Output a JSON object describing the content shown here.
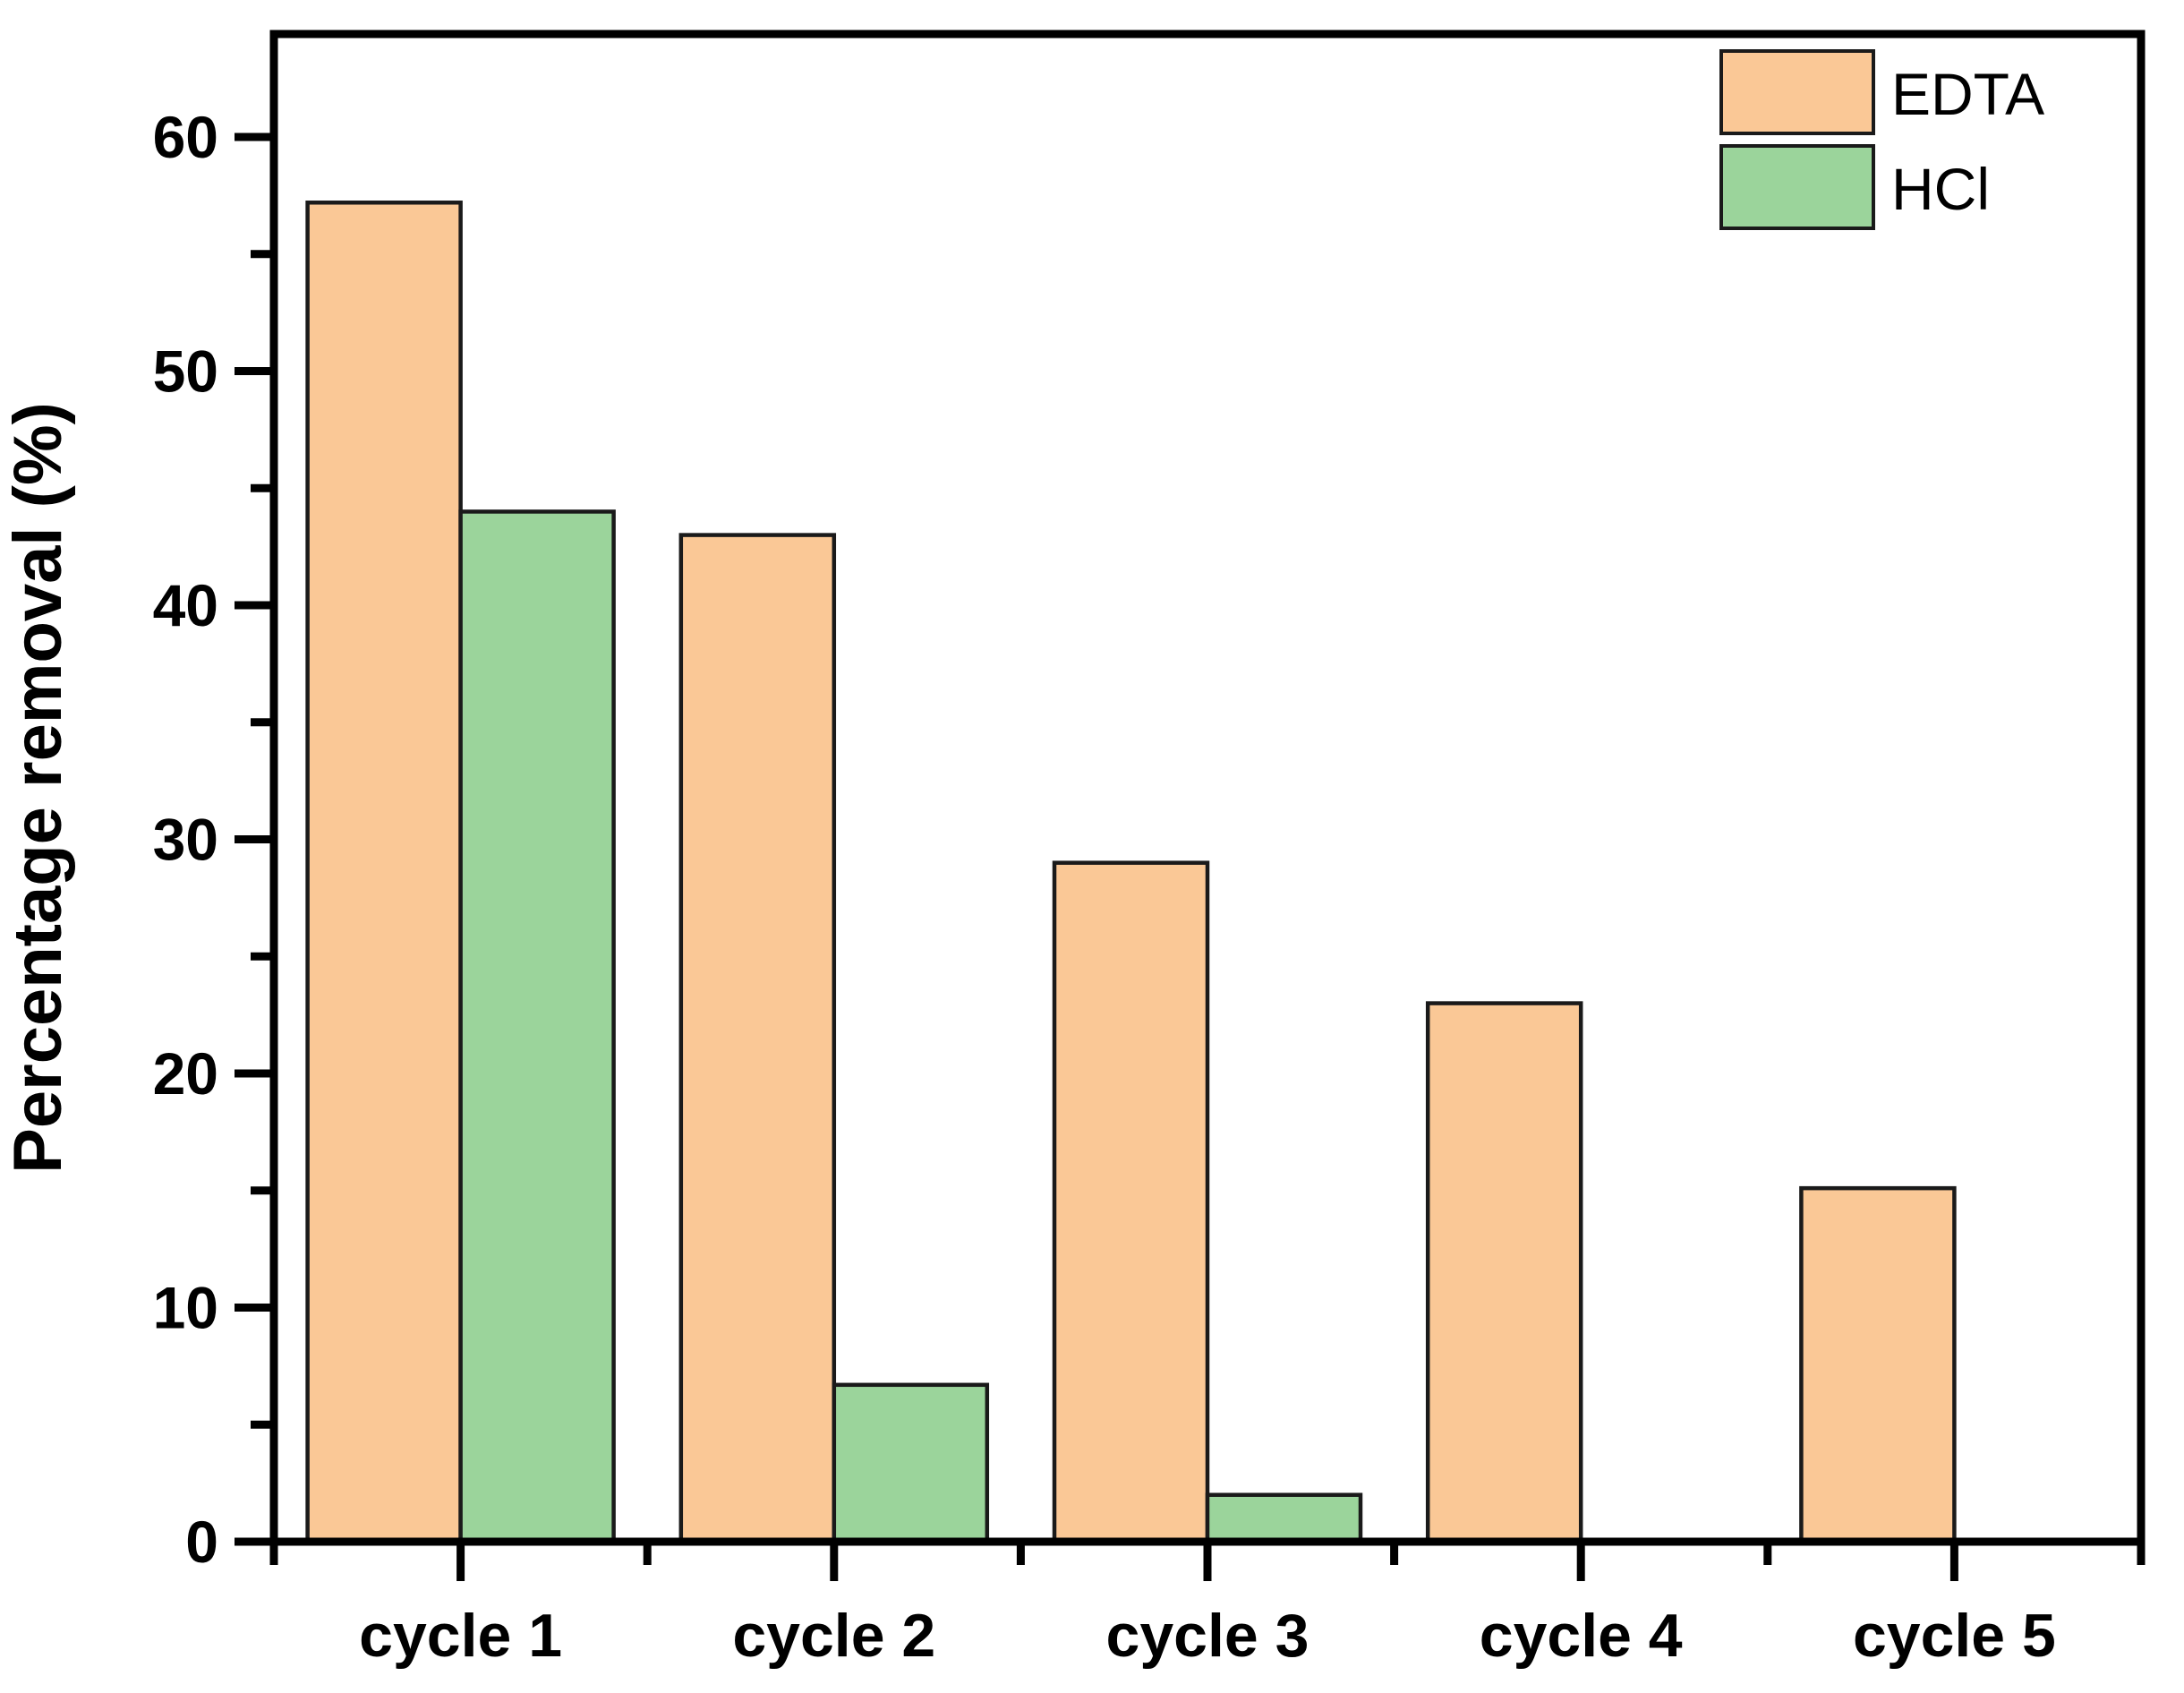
{
  "figure": {
    "background": "#ffffff"
  },
  "chart_data": {
    "type": "bar",
    "title": "",
    "categories": [
      "cycle 1",
      "cycle 2",
      "cycle 3",
      "cycle 4",
      "cycle 5"
    ],
    "series": [
      {
        "name": "EDTA",
        "color": "#FAC896",
        "values": [
          57.2,
          43.0,
          29.0,
          23.0,
          15.1
        ]
      },
      {
        "name": "HCl",
        "color": "#9BD49B",
        "values": [
          44.0,
          6.7,
          2.0,
          0,
          0
        ]
      }
    ],
    "xlabel": "",
    "ylabel": "Percentage removal (%)",
    "ylim": [
      0,
      64.4
    ],
    "yticks_major": [
      0,
      10,
      20,
      30,
      40,
      50,
      60
    ],
    "ytick_minor_step": 5,
    "grid": false,
    "legend_position": "top-right",
    "legend_entries": [
      "EDTA",
      "HCl"
    ],
    "bar_outline_color": "#1a1a1a",
    "axis_color": "#000000",
    "text_color": "#000000"
  }
}
